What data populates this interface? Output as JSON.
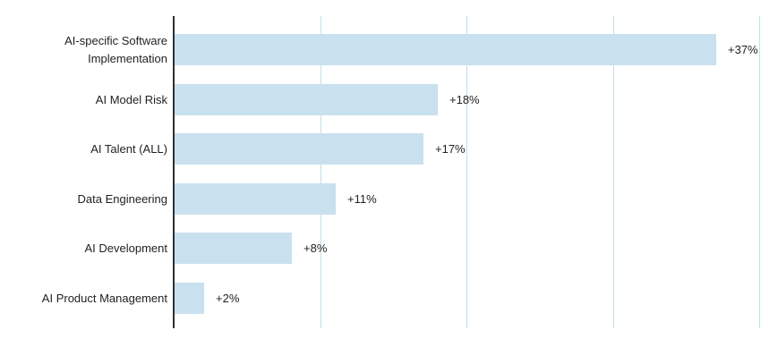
{
  "chart_data": {
    "type": "bar",
    "orientation": "horizontal",
    "title": "",
    "xlabel": "",
    "ylabel": "",
    "categories": [
      "AI-specific Software Implementation",
      "AI Model Risk",
      "AI Talent (ALL)",
      "Data Engineering",
      "AI Development",
      "AI Product Management"
    ],
    "values": [
      37,
      18,
      17,
      11,
      8,
      2
    ],
    "annotations": [
      "+37%",
      "+18%",
      "+17%",
      "+11%",
      "+8%",
      "+2%"
    ],
    "xlim": [
      0,
      41.3
    ],
    "gridline_values": [
      10,
      20,
      30,
      40
    ],
    "x_tick_labels_visible": false,
    "legend": "none",
    "colors": {
      "bar": "#c9e1ef",
      "gridline": "#c4ddec",
      "axis_line": "#2f2f2f",
      "text": "#222222",
      "background": "#ffffff"
    }
  }
}
